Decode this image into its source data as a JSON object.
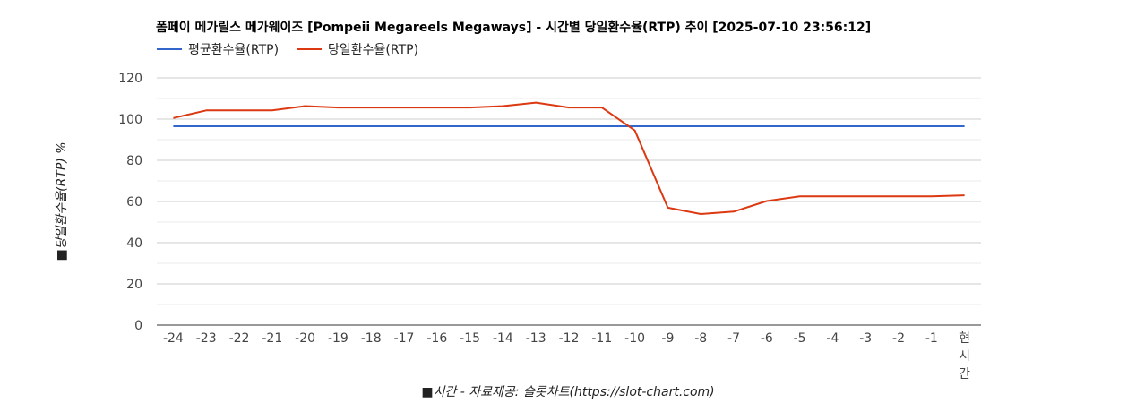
{
  "chart_data": {
    "type": "line",
    "title": "폼페이 메가릴스 메가웨이즈 [Pompeii Megareels Megaways] - 시간별 당일환수율(RTP) 추이 [2025-07-10 23:56:12]",
    "xlabel": "■시간 - 자료제공: 슬롯차트(https://slot-chart.com)",
    "ylabel": "■당일환수율(RTP) %",
    "categories": [
      "-24",
      "-23",
      "-22",
      "-21",
      "-20",
      "-19",
      "-18",
      "-17",
      "-16",
      "-15",
      "-14",
      "-13",
      "-12",
      "-11",
      "-10",
      "-9",
      "-8",
      "-7",
      "-6",
      "-5",
      "-4",
      "-3",
      "-2",
      "-1",
      "현시간"
    ],
    "ylim": [
      0,
      120
    ],
    "yticks": [
      0,
      20,
      40,
      60,
      80,
      100,
      120
    ],
    "grid": true,
    "legend_position": "top-left",
    "series": [
      {
        "name": "평균환수율(RTP)",
        "color": "#3366cc",
        "values": [
          96.5,
          96.5,
          96.5,
          96.5,
          96.5,
          96.5,
          96.5,
          96.5,
          96.5,
          96.5,
          96.5,
          96.5,
          96.5,
          96.5,
          96.5,
          96.5,
          96.5,
          96.5,
          96.5,
          96.5,
          96.5,
          96.5,
          96.5,
          96.5,
          96.5
        ]
      },
      {
        "name": "당일환수율(RTP)",
        "color": "#dc3912",
        "values": [
          100.5,
          104.2,
          104.2,
          104.2,
          106.3,
          105.6,
          105.6,
          105.6,
          105.6,
          105.6,
          106.3,
          108,
          105.6,
          105.6,
          94.5,
          57,
          53.9,
          55.1,
          60.2,
          62.5,
          62.5,
          62.5,
          62.5,
          62.5,
          63
        ]
      }
    ]
  }
}
